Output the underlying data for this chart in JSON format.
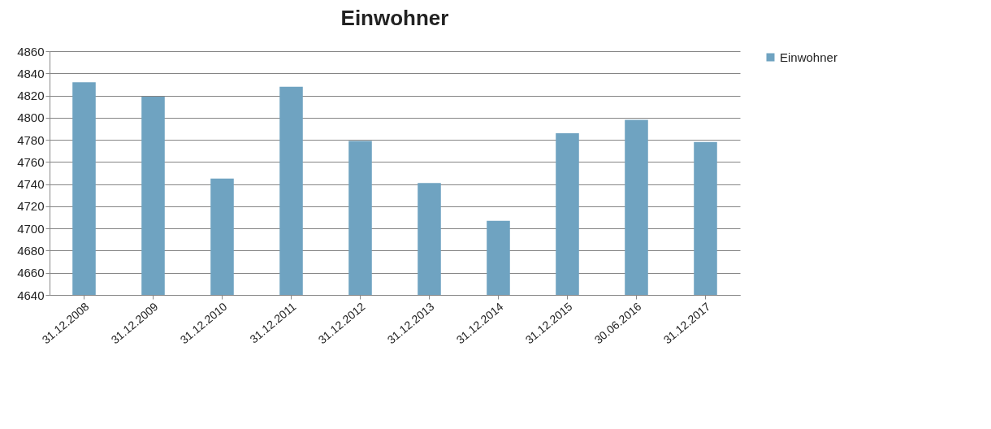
{
  "chart_data": {
    "type": "bar",
    "title": "Einwohner",
    "categories": [
      "31.12.2008",
      "31.12.2009",
      "31.12.2010",
      "31.12.2011",
      "31.12.2012",
      "31.12.2013",
      "31.12.2014",
      "31.12.2015",
      "30.06.2016",
      "31.12.2017"
    ],
    "series": [
      {
        "name": "Einwohner",
        "color": "#6fa3c1",
        "values": [
          4832,
          4819,
          4745,
          4828,
          4779,
          4741,
          4707,
          4786,
          4798,
          4778
        ]
      }
    ],
    "ylim": [
      4640,
      4860
    ],
    "yticks": [
      4640,
      4660,
      4680,
      4700,
      4720,
      4740,
      4760,
      4780,
      4800,
      4820,
      4840,
      4860
    ],
    "grid": "y",
    "legend": "right"
  }
}
